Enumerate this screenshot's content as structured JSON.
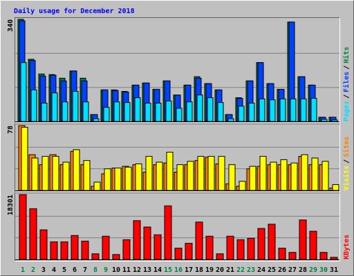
{
  "title": "Daily usage for December 2018",
  "chart_data": [
    {
      "type": "bar",
      "ylim": [
        0,
        340
      ],
      "yticks": [
        340
      ],
      "ygrid": [
        113,
        227
      ],
      "legend_separator": "/",
      "series": [
        {
          "name": "Hits",
          "color": "#008040",
          "values": [
            340,
            207,
            158,
            156,
            144,
            168,
            144,
            23,
            105,
            105,
            100,
            121,
            128,
            107,
            135,
            88,
            121,
            149,
            126,
            105,
            23,
            79,
            135,
            196,
            126,
            107,
            331,
            149,
            121,
            14,
            14
          ]
        },
        {
          "name": "Files",
          "color": "#0040ff",
          "values": [
            335,
            203,
            151,
            154,
            135,
            168,
            135,
            23,
            105,
            103,
            98,
            121,
            128,
            107,
            135,
            88,
            121,
            144,
            126,
            105,
            23,
            77,
            135,
            196,
            126,
            107,
            331,
            149,
            121,
            14,
            14
          ]
        },
        {
          "name": "Pages",
          "color": "#00e0ff",
          "values": [
            196,
            105,
            61,
            95,
            65,
            100,
            65,
            9,
            47,
            65,
            63,
            79,
            61,
            61,
            68,
            44,
            65,
            88,
            79,
            63,
            9,
            51,
            61,
            75,
            72,
            75,
            75,
            75,
            77,
            7,
            5
          ]
        }
      ]
    },
    {
      "type": "bar",
      "ylim": [
        0,
        78
      ],
      "yticks": [
        78
      ],
      "ygrid": [
        26,
        52
      ],
      "legend_separator": "/",
      "series": [
        {
          "name": "Sites",
          "color": "#ff8000",
          "values": [
            78,
            43,
            31,
            43,
            31,
            47,
            31,
            5,
            20,
            27,
            29,
            31,
            22,
            31,
            33,
            22,
            31,
            36,
            40,
            32,
            8,
            5,
            26,
            29,
            31,
            31,
            31,
            41,
            31,
            31,
            3
          ]
        },
        {
          "name": "Visits",
          "color": "#ffff00",
          "values": [
            76,
            39,
            41,
            41,
            34,
            49,
            36,
            10,
            26,
            27,
            28,
            32,
            41,
            34,
            46,
            31,
            35,
            41,
            41,
            41,
            31,
            11,
            29,
            41,
            34,
            37,
            33,
            43,
            39,
            35,
            7
          ]
        }
      ]
    },
    {
      "type": "bar",
      "ylim": [
        0,
        18301
      ],
      "yticks": [
        18301
      ],
      "ygrid": [
        6100,
        12200
      ],
      "categories": [
        "1",
        "2",
        "3",
        "4",
        "5",
        "6",
        "7",
        "8",
        "9",
        "10",
        "11",
        "12",
        "13",
        "14",
        "15",
        "16",
        "17",
        "18",
        "19",
        "20",
        "21",
        "22",
        "23",
        "24",
        "25",
        "26",
        "27",
        "28",
        "29",
        "30",
        "31"
      ],
      "category_colors": [
        "#008040",
        "#008040",
        "#000000",
        "#000000",
        "#000000",
        "#000000",
        "#000000",
        "#008040",
        "#008040",
        "#000000",
        "#000000",
        "#000000",
        "#000000",
        "#000000",
        "#008040",
        "#008040",
        "#000000",
        "#000000",
        "#000000",
        "#000000",
        "#000000",
        "#008040",
        "#008040",
        "#000000",
        "#000000",
        "#000000",
        "#000000",
        "#000000",
        "#008040",
        "#008040",
        "#000000"
      ],
      "series": [
        {
          "name": "KBytes",
          "color": "#ff0000",
          "values": [
            18301,
            14322,
            8354,
            4973,
            4973,
            6763,
            5172,
            1591,
            6564,
            1392,
            5570,
            10941,
            9151,
            6962,
            15118,
            3183,
            4575,
            10543,
            6564,
            1591,
            6564,
            5570,
            5968,
            8752,
            9946,
            3183,
            1989,
            11140,
            7957,
            1989,
            597
          ]
        }
      ]
    }
  ]
}
